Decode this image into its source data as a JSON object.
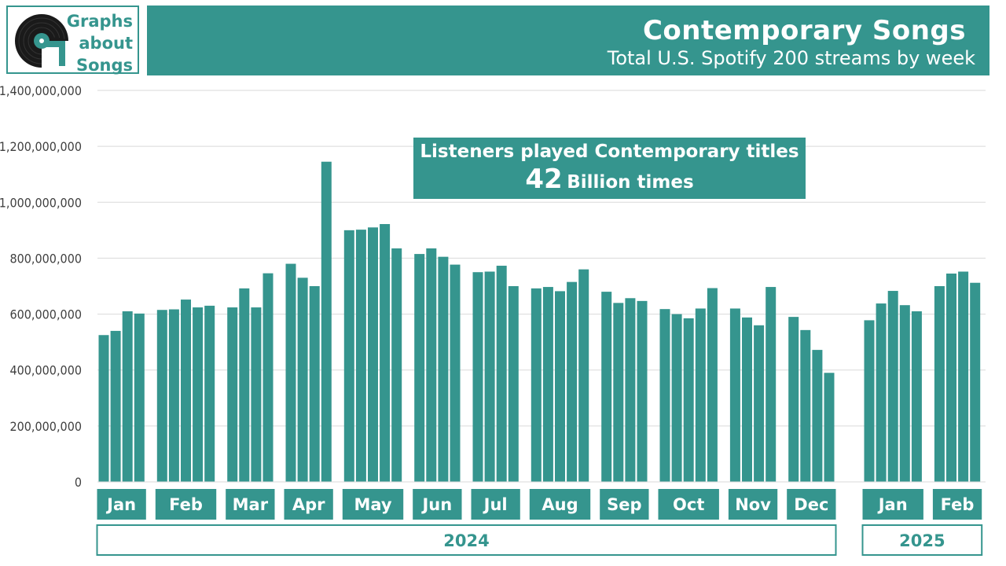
{
  "logo": {
    "line1": "Graphs",
    "line2": "about",
    "line3": "Songs"
  },
  "header": {
    "title": "Contemporary Songs",
    "subtitle": "Total U.S. Spotify 200 streams by week"
  },
  "callout": {
    "line1": "Listeners played Contemporary titles",
    "big_number": "42",
    "line2_rest": "Billion times"
  },
  "colors": {
    "accent": "#35958E",
    "grid": "#d9d9d9",
    "axis_text": "#404040"
  },
  "chart_data": {
    "type": "bar",
    "title": "",
    "xlabel": "",
    "ylabel": "",
    "ylim": [
      0,
      1400000000
    ],
    "y_ticks": [
      0,
      200000000,
      400000000,
      600000000,
      800000000,
      1000000000,
      1200000000,
      1400000000
    ],
    "y_tick_labels": [
      "0",
      "200,000,000",
      "400,000,000",
      "600,000,000",
      "800,000,000",
      "1,000,000,000",
      "1,200,000,000",
      "1,400,000,000"
    ],
    "grid": true,
    "months": [
      {
        "label": "Jan",
        "year": "2024",
        "values": [
          525000000,
          540000000,
          610000000,
          602000000
        ]
      },
      {
        "label": "Feb",
        "year": "2024",
        "values": [
          615000000,
          617000000,
          652000000,
          624000000,
          630000000
        ]
      },
      {
        "label": "Mar",
        "year": "2024",
        "values": [
          624000000,
          692000000,
          624000000,
          746000000
        ]
      },
      {
        "label": "Apr",
        "year": "2024",
        "values": [
          780000000,
          730000000,
          700000000,
          1145000000
        ]
      },
      {
        "label": "May",
        "year": "2024",
        "values": [
          900000000,
          902000000,
          910000000,
          922000000,
          835000000
        ]
      },
      {
        "label": "Jun",
        "year": "2024",
        "values": [
          815000000,
          835000000,
          805000000,
          777000000
        ]
      },
      {
        "label": "Jul",
        "year": "2024",
        "values": [
          750000000,
          752000000,
          773000000,
          700000000
        ]
      },
      {
        "label": "Aug",
        "year": "2024",
        "values": [
          692000000,
          697000000,
          682000000,
          715000000,
          760000000
        ]
      },
      {
        "label": "Sep",
        "year": "2024",
        "values": [
          680000000,
          640000000,
          657000000,
          647000000
        ]
      },
      {
        "label": "Oct",
        "year": "2024",
        "values": [
          618000000,
          600000000,
          585000000,
          620000000,
          693000000
        ]
      },
      {
        "label": "Nov",
        "year": "2024",
        "values": [
          620000000,
          588000000,
          560000000,
          697000000
        ]
      },
      {
        "label": "Dec",
        "year": "2024",
        "values": [
          590000000,
          543000000,
          472000000,
          390000000
        ]
      },
      {
        "label": "Jan",
        "year": "2025",
        "values": [
          578000000,
          638000000,
          683000000,
          632000000,
          610000000
        ]
      },
      {
        "label": "Feb",
        "year": "2025",
        "values": [
          700000000,
          745000000,
          752000000,
          712000000
        ]
      }
    ],
    "years": [
      "2024",
      "2025"
    ]
  }
}
